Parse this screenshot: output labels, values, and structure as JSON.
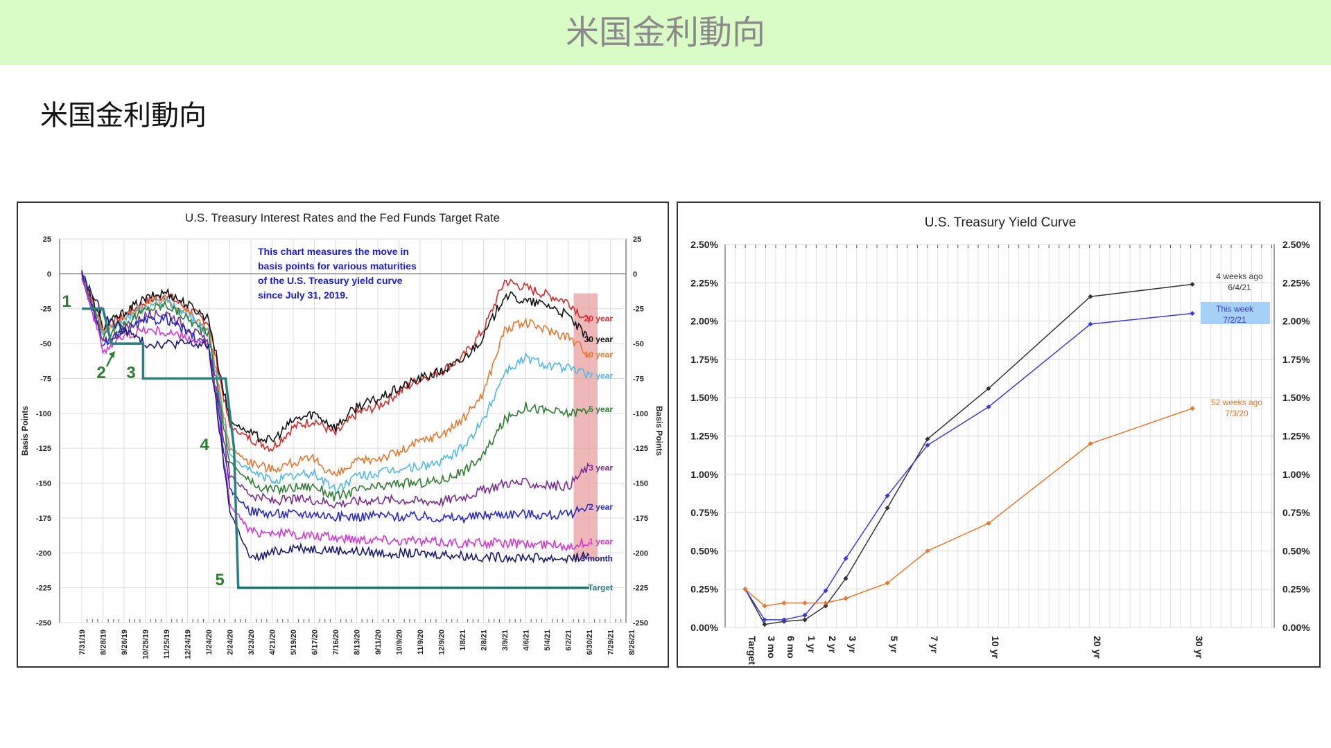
{
  "page": {
    "banner_title": "米国金利動向",
    "subtitle": "米国金利動向"
  },
  "chart_data": [
    {
      "type": "line",
      "title": "U.S. Treasury Interest Rates and the Fed Funds Target Rate",
      "ylabel_left": "Basis Points",
      "ylabel_right": "Basis Points",
      "ylim": [
        -250,
        25
      ],
      "yticks": [
        25,
        0,
        -25,
        -50,
        -75,
        -100,
        -125,
        -150,
        -175,
        -200,
        -225,
        -250
      ],
      "x_tick_labels": [
        "7/31/19",
        "8/28/19",
        "9/26/19",
        "10/25/19",
        "11/25/19",
        "12/24/19",
        "1/24/20",
        "2/24/20",
        "3/23/20",
        "4/21/20",
        "5/19/20",
        "6/17/20",
        "7/16/20",
        "8/13/20",
        "9/11/20",
        "10/9/20",
        "11/9/20",
        "12/9/20",
        "1/8/21",
        "2/8/21",
        "3/9/21",
        "4/6/21",
        "5/4/21",
        "6/2/21",
        "6/30/21",
        "7/29/21",
        "8/26/21"
      ],
      "annotation": [
        "This chart measures the move in",
        "basis points for various maturities",
        "of the U.S. Treasury yield curve",
        "since July 31, 2019."
      ],
      "event_markers": [
        "1",
        "2",
        "3",
        "4",
        "5"
      ],
      "highlight_color": "#e8a0a0",
      "series": [
        {
          "name": "20 year",
          "color": "#d42a2a",
          "points": [
            [
              0,
              0
            ],
            [
              1,
              -40
            ],
            [
              2,
              -30
            ],
            [
              3,
              -20
            ],
            [
              4,
              -15
            ],
            [
              5,
              -25
            ],
            [
              6,
              -35
            ],
            [
              7,
              -110
            ],
            [
              8,
              -118
            ],
            [
              9,
              -125
            ],
            [
              10,
              -110
            ],
            [
              11,
              -105
            ],
            [
              12,
              -115
            ],
            [
              13,
              -100
            ],
            [
              14,
              -95
            ],
            [
              15,
              -85
            ],
            [
              16,
              -75
            ],
            [
              17,
              -70
            ],
            [
              18,
              -60
            ],
            [
              19,
              -40
            ],
            [
              20,
              -5
            ],
            [
              21,
              -10
            ],
            [
              22,
              -15
            ],
            [
              23,
              -20
            ],
            [
              24,
              -35
            ]
          ]
        },
        {
          "name": "30 year",
          "color": "#111111",
          "points": [
            [
              0,
              0
            ],
            [
              1,
              -38
            ],
            [
              2,
              -28
            ],
            [
              3,
              -18
            ],
            [
              4,
              -13
            ],
            [
              5,
              -22
            ],
            [
              6,
              -32
            ],
            [
              7,
              -105
            ],
            [
              8,
              -115
            ],
            [
              9,
              -120
            ],
            [
              10,
              -105
            ],
            [
              11,
              -100
            ],
            [
              12,
              -110
            ],
            [
              13,
              -95
            ],
            [
              14,
              -90
            ],
            [
              15,
              -82
            ],
            [
              16,
              -75
            ],
            [
              17,
              -70
            ],
            [
              18,
              -62
            ],
            [
              19,
              -45
            ],
            [
              20,
              -15
            ],
            [
              21,
              -20
            ],
            [
              22,
              -22
            ],
            [
              23,
              -30
            ],
            [
              24,
              -48
            ]
          ]
        },
        {
          "name": "10 year",
          "color": "#e8762c",
          "points": [
            [
              0,
              0
            ],
            [
              1,
              -42
            ],
            [
              2,
              -32
            ],
            [
              3,
              -22
            ],
            [
              4,
              -18
            ],
            [
              5,
              -28
            ],
            [
              6,
              -40
            ],
            [
              7,
              -125
            ],
            [
              8,
              -135
            ],
            [
              9,
              -140
            ],
            [
              10,
              -135
            ],
            [
              11,
              -133
            ],
            [
              12,
              -145
            ],
            [
              13,
              -135
            ],
            [
              14,
              -132
            ],
            [
              15,
              -128
            ],
            [
              16,
              -120
            ],
            [
              17,
              -115
            ],
            [
              18,
              -105
            ],
            [
              19,
              -85
            ],
            [
              20,
              -40
            ],
            [
              21,
              -35
            ],
            [
              22,
              -40
            ],
            [
              23,
              -45
            ],
            [
              24,
              -57
            ]
          ]
        },
        {
          "name": "7 year",
          "color": "#4db8e8",
          "points": [
            [
              0,
              0
            ],
            [
              1,
              -44
            ],
            [
              2,
              -34
            ],
            [
              3,
              -24
            ],
            [
              4,
              -20
            ],
            [
              5,
              -30
            ],
            [
              6,
              -42
            ],
            [
              7,
              -130
            ],
            [
              8,
              -142
            ],
            [
              9,
              -148
            ],
            [
              10,
              -145
            ],
            [
              11,
              -143
            ],
            [
              12,
              -155
            ],
            [
              13,
              -145
            ],
            [
              14,
              -143
            ],
            [
              15,
              -140
            ],
            [
              16,
              -138
            ],
            [
              17,
              -135
            ],
            [
              18,
              -125
            ],
            [
              19,
              -105
            ],
            [
              20,
              -70
            ],
            [
              21,
              -60
            ],
            [
              22,
              -65
            ],
            [
              23,
              -68
            ],
            [
              24,
              -72
            ]
          ]
        },
        {
          "name": "5 year",
          "color": "#2e7d32",
          "points": [
            [
              0,
              0
            ],
            [
              1,
              -46
            ],
            [
              2,
              -36
            ],
            [
              3,
              -26
            ],
            [
              4,
              -22
            ],
            [
              5,
              -32
            ],
            [
              6,
              -44
            ],
            [
              7,
              -135
            ],
            [
              8,
              -150
            ],
            [
              9,
              -155
            ],
            [
              10,
              -153
            ],
            [
              11,
              -152
            ],
            [
              12,
              -160
            ],
            [
              13,
              -155
            ],
            [
              14,
              -153
            ],
            [
              15,
              -150
            ],
            [
              16,
              -150
            ],
            [
              17,
              -148
            ],
            [
              18,
              -142
            ],
            [
              19,
              -130
            ],
            [
              20,
              -105
            ],
            [
              21,
              -95
            ],
            [
              22,
              -98
            ],
            [
              23,
              -100
            ],
            [
              24,
              -97
            ]
          ]
        },
        {
          "name": "3 year",
          "color": "#7b2d8e",
          "points": [
            [
              0,
              0
            ],
            [
              1,
              -50
            ],
            [
              2,
              -40
            ],
            [
              3,
              -30
            ],
            [
              4,
              -28
            ],
            [
              5,
              -38
            ],
            [
              6,
              -50
            ],
            [
              7,
              -145
            ],
            [
              8,
              -158
            ],
            [
              9,
              -163
            ],
            [
              10,
              -162
            ],
            [
              11,
              -162
            ],
            [
              12,
              -165
            ],
            [
              13,
              -163
            ],
            [
              14,
              -162
            ],
            [
              15,
              -162
            ],
            [
              16,
              -163
            ],
            [
              17,
              -163
            ],
            [
              18,
              -160
            ],
            [
              19,
              -155
            ],
            [
              20,
              -150
            ],
            [
              21,
              -150
            ],
            [
              22,
              -152
            ],
            [
              23,
              -152
            ],
            [
              24,
              -138
            ]
          ]
        },
        {
          "name": "2 year",
          "color": "#2727c8",
          "points": [
            [
              0,
              0
            ],
            [
              1,
              -52
            ],
            [
              2,
              -42
            ],
            [
              3,
              -34
            ],
            [
              4,
              -32
            ],
            [
              5,
              -42
            ],
            [
              6,
              -52
            ],
            [
              7,
              -155
            ],
            [
              8,
              -170
            ],
            [
              9,
              -172
            ],
            [
              10,
              -172
            ],
            [
              11,
              -172
            ],
            [
              12,
              -174
            ],
            [
              13,
              -174
            ],
            [
              14,
              -173
            ],
            [
              15,
              -174
            ],
            [
              16,
              -174
            ],
            [
              17,
              -175
            ],
            [
              18,
              -175
            ],
            [
              19,
              -173
            ],
            [
              20,
              -172
            ],
            [
              21,
              -172
            ],
            [
              22,
              -173
            ],
            [
              23,
              -173
            ],
            [
              24,
              -165
            ]
          ]
        },
        {
          "name": "1 year",
          "color": "#d633d6",
          "points": [
            [
              0,
              0
            ],
            [
              1,
              -55
            ],
            [
              2,
              -45
            ],
            [
              3,
              -40
            ],
            [
              4,
              -42
            ],
            [
              5,
              -46
            ],
            [
              6,
              -52
            ],
            [
              7,
              -165
            ],
            [
              8,
              -185
            ],
            [
              9,
              -185
            ],
            [
              10,
              -187
            ],
            [
              11,
              -188
            ],
            [
              12,
              -189
            ],
            [
              13,
              -190
            ],
            [
              14,
              -190
            ],
            [
              15,
              -191
            ],
            [
              16,
              -192
            ],
            [
              17,
              -192
            ],
            [
              18,
              -193
            ],
            [
              19,
              -193
            ],
            [
              20,
              -193
            ],
            [
              21,
              -194
            ],
            [
              22,
              -194
            ],
            [
              23,
              -195
            ],
            [
              24,
              -192
            ]
          ]
        },
        {
          "name": "3 month",
          "color": "#1a1a6e",
          "points": [
            [
              0,
              0
            ],
            [
              1,
              -30
            ],
            [
              2,
              -40
            ],
            [
              3,
              -50
            ],
            [
              4,
              -50
            ],
            [
              5,
              -50
            ],
            [
              6,
              -52
            ],
            [
              7,
              -170
            ],
            [
              8,
              -205
            ],
            [
              9,
              -200
            ],
            [
              10,
              -196
            ],
            [
              11,
              -197
            ],
            [
              12,
              -198
            ],
            [
              13,
              -199
            ],
            [
              14,
              -200
            ],
            [
              15,
              -200
            ],
            [
              16,
              -201
            ],
            [
              17,
              -201
            ],
            [
              18,
              -202
            ],
            [
              19,
              -203
            ],
            [
              20,
              -203
            ],
            [
              21,
              -203
            ],
            [
              22,
              -204
            ],
            [
              23,
              -204
            ],
            [
              24,
              -202
            ]
          ]
        },
        {
          "name": "Target",
          "color": "#2a8080",
          "points": [
            [
              0,
              -25
            ],
            [
              1,
              -25
            ],
            [
              1.4,
              -50
            ],
            [
              2.9,
              -50
            ],
            [
              2.9,
              -75
            ],
            [
              6.8,
              -75
            ],
            [
              7.2,
              -125
            ],
            [
              7.4,
              -225
            ],
            [
              24,
              -225
            ]
          ]
        }
      ]
    },
    {
      "type": "line",
      "title": "U.S. Treasury Yield Curve",
      "categories": [
        "Target",
        "3 mo",
        "6 mo",
        "1 yr",
        "2 yr",
        "3 yr",
        "5 yr",
        "7 yr",
        "10 yr",
        "20 yr",
        "30 yr"
      ],
      "ylim": [
        0,
        2.5
      ],
      "yticks": [
        "0.00%",
        "0.25%",
        "0.50%",
        "0.75%",
        "1.00%",
        "1.25%",
        "1.50%",
        "1.75%",
        "2.00%",
        "2.25%",
        "2.50%"
      ],
      "series": [
        {
          "name": "4 weeks ago 6/4/21",
          "label_lines": [
            "4 weeks ago",
            "6/4/21"
          ],
          "color": "#333333",
          "values": [
            0.25,
            0.02,
            0.04,
            0.05,
            0.14,
            0.32,
            0.78,
            1.23,
            1.56,
            2.16,
            2.24
          ]
        },
        {
          "name": "This week 7/2/21",
          "label_lines": [
            "This week",
            "7/2/21"
          ],
          "color": "#3a3ad6",
          "label_bg": "#a6d0f5",
          "values": [
            0.25,
            0.05,
            0.05,
            0.08,
            0.24,
            0.45,
            0.86,
            1.19,
            1.44,
            1.98,
            2.05
          ]
        },
        {
          "name": "52 weeks ago 7/3/20",
          "label_lines": [
            "52 weeks ago",
            "7/3/20"
          ],
          "color": "#e8762c",
          "values": [
            0.25,
            0.14,
            0.16,
            0.16,
            0.16,
            0.19,
            0.29,
            0.5,
            0.68,
            1.2,
            1.43
          ]
        }
      ]
    }
  ]
}
